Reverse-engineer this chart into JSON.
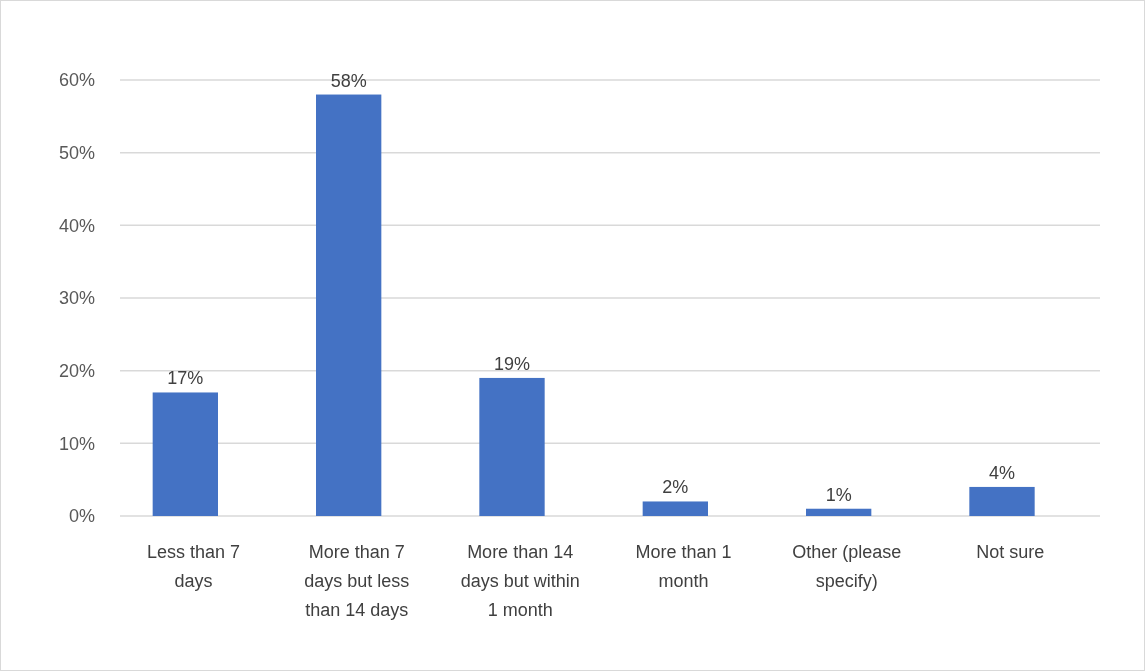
{
  "chart_data": {
    "type": "bar",
    "categories": [
      "Less than 7 days",
      "More than 7 days but less than 14 days",
      "More than 14 days but within 1 month",
      "More than 1 month",
      "Other (please specify)",
      "Not sure"
    ],
    "values": [
      17,
      58,
      19,
      2,
      1,
      4
    ],
    "value_labels": [
      "17%",
      "58%",
      "19%",
      "2%",
      "1%",
      "4%"
    ],
    "color": "#4472c4",
    "ylim": [
      0,
      60
    ],
    "yticks": [
      {
        "value": 0,
        "label": "0%"
      },
      {
        "value": 10,
        "label": "10%"
      },
      {
        "value": 20,
        "label": "20%"
      },
      {
        "value": 30,
        "label": "30%"
      },
      {
        "value": 40,
        "label": "40%"
      },
      {
        "value": 50,
        "label": "50%"
      },
      {
        "value": 60,
        "label": "60%"
      }
    ],
    "grid": "y"
  }
}
